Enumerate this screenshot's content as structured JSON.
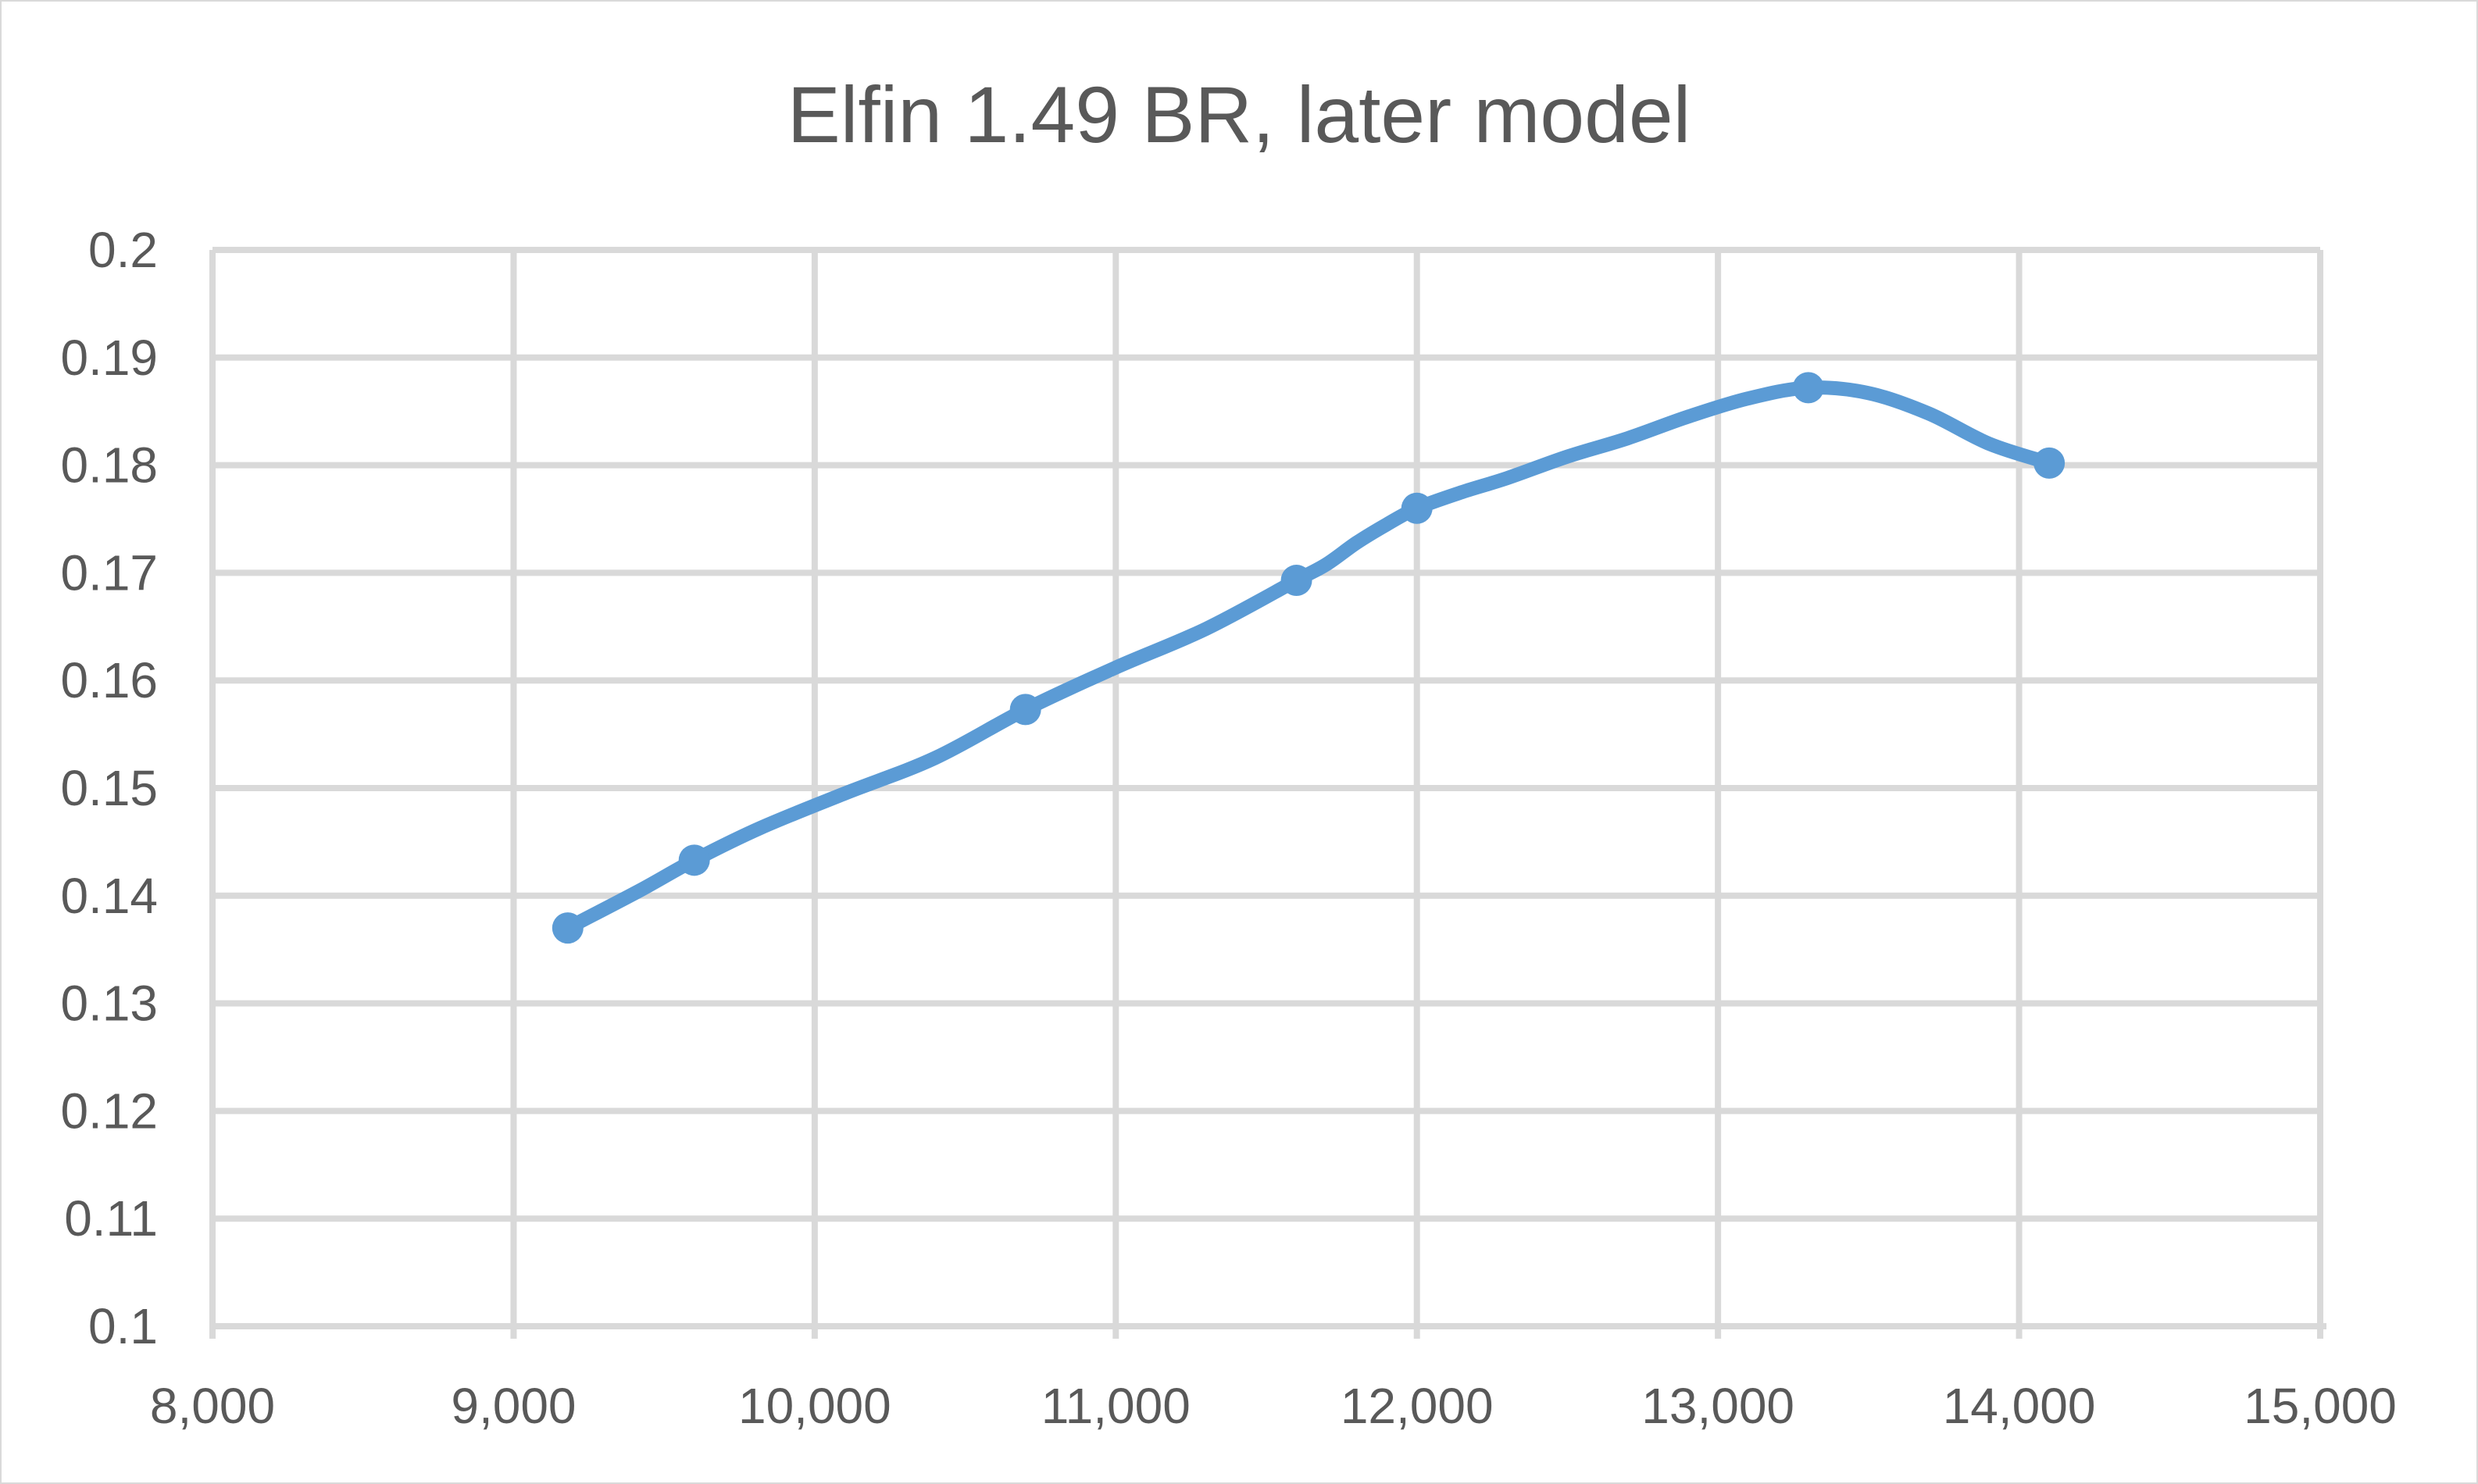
{
  "chart_data": {
    "type": "line",
    "title": "Elfin 1.49 BR, later model",
    "xlabel": "",
    "ylabel": "",
    "xlim": [
      8000,
      15000
    ],
    "ylim": [
      0.1,
      0.2
    ],
    "grid": true,
    "legend": "none",
    "x_ticks": [
      "8,000",
      "9,000",
      "10,000",
      "11,000",
      "12,000",
      "13,000",
      "14,000",
      "15,000"
    ],
    "y_ticks": [
      "0.1",
      "0.11",
      "0.12",
      "0.13",
      "0.14",
      "0.15",
      "0.16",
      "0.17",
      "0.18",
      "0.19",
      "0.2"
    ],
    "series": [
      {
        "color": "#5b9bd5",
        "markers": [
          {
            "x": 9180,
            "y": 0.137
          },
          {
            "x": 9600,
            "y": 0.1433
          },
          {
            "x": 10700,
            "y": 0.1573
          },
          {
            "x": 11600,
            "y": 0.1693
          },
          {
            "x": 12000,
            "y": 0.176
          },
          {
            "x": 13300,
            "y": 0.1872
          },
          {
            "x": 14100,
            "y": 0.1802
          }
        ],
        "curve": [
          [
            9180,
            0.137
          ],
          [
            9420,
            0.1405
          ],
          [
            9600,
            0.1433
          ],
          [
            9820,
            0.1463
          ],
          [
            10100,
            0.1495
          ],
          [
            10400,
            0.1528
          ],
          [
            10700,
            0.1573
          ],
          [
            11000,
            0.1612
          ],
          [
            11300,
            0.1648
          ],
          [
            11600,
            0.1693
          ],
          [
            11700,
            0.1708
          ],
          [
            11800,
            0.1728
          ],
          [
            11900,
            0.1745
          ],
          [
            12000,
            0.176
          ],
          [
            12150,
            0.1775
          ],
          [
            12300,
            0.1788
          ],
          [
            12500,
            0.1808
          ],
          [
            12700,
            0.1825
          ],
          [
            12900,
            0.1845
          ],
          [
            13100,
            0.1862
          ],
          [
            13300,
            0.1872
          ],
          [
            13500,
            0.1867
          ],
          [
            13700,
            0.1848
          ],
          [
            13900,
            0.182
          ],
          [
            14100,
            0.1802
          ]
        ]
      }
    ]
  },
  "colors": {
    "series": "#5b9bd5",
    "grid": "#d9d9d9",
    "text": "#595959"
  }
}
